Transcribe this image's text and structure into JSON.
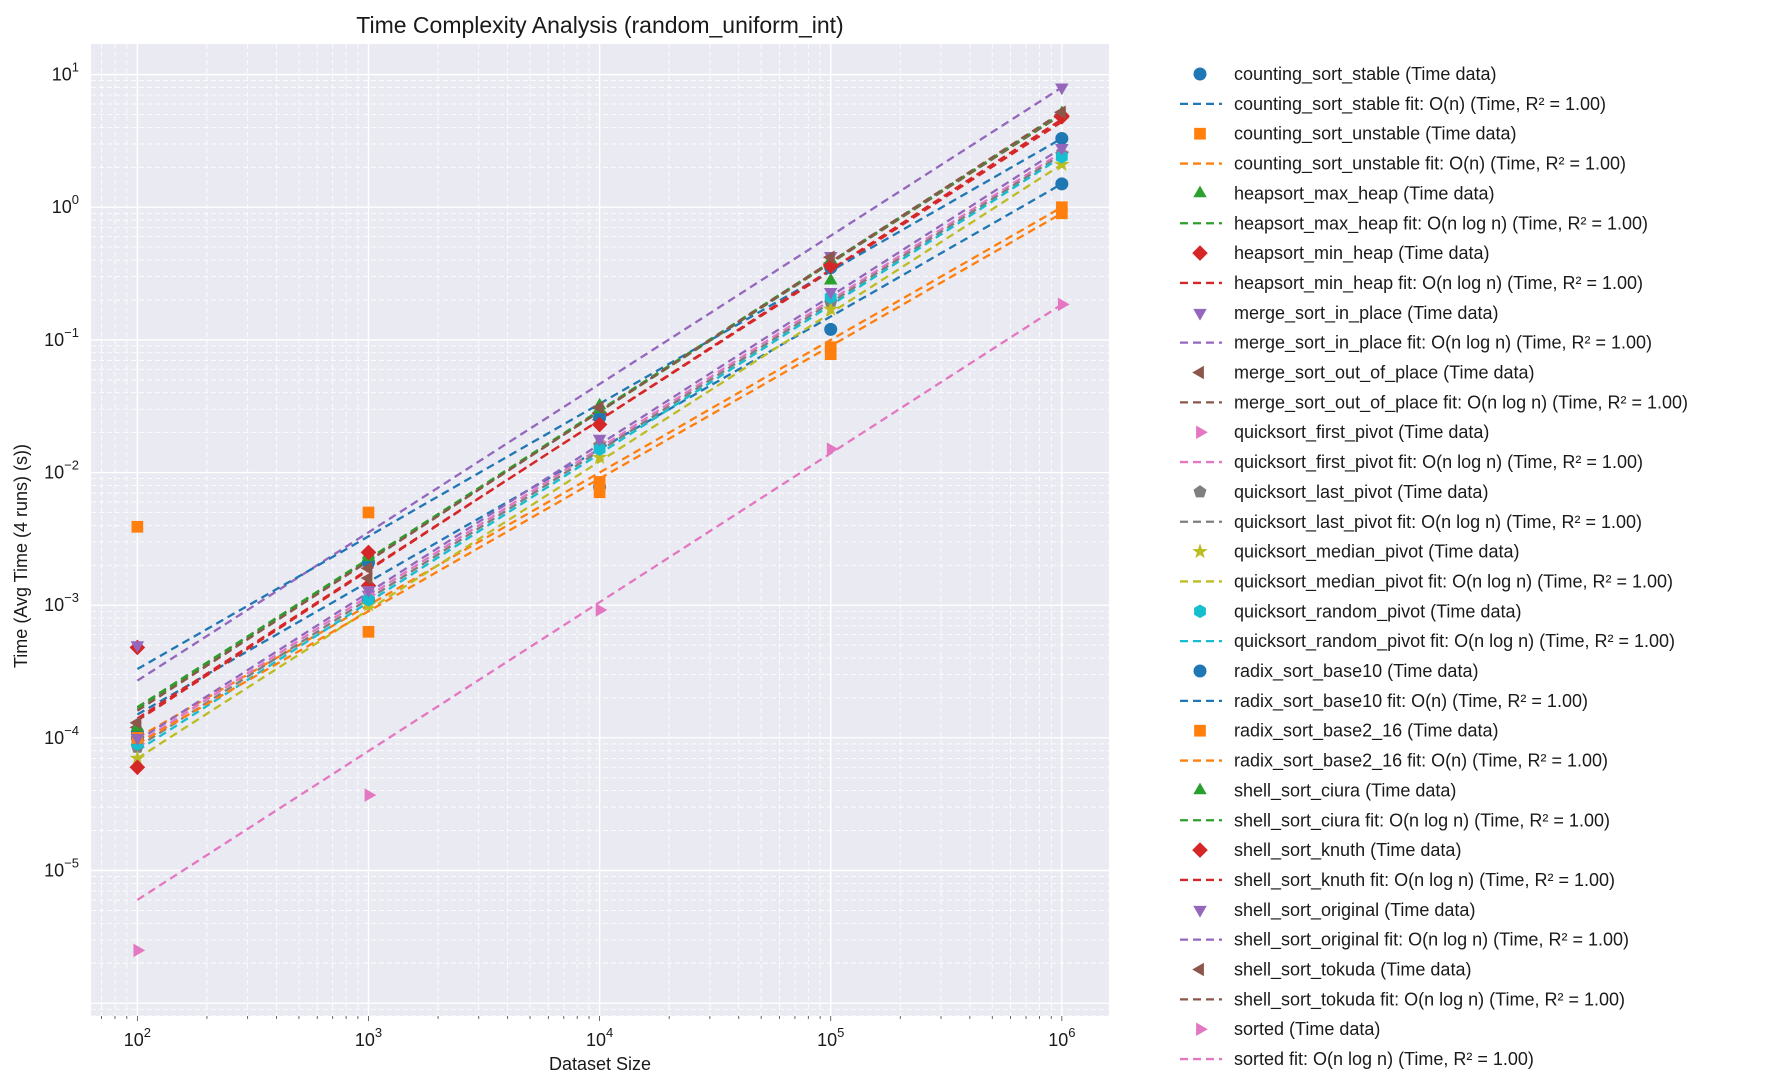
{
  "chart_data": {
    "type": "scatter",
    "title": "Time Complexity Analysis (random_uniform_int)",
    "xlabel": "Dataset Size",
    "ylabel": "Time (Avg Time (4 runs) (s))",
    "xscale": "log",
    "yscale": "log",
    "xlim": [
      63,
      1600000
    ],
    "ylim": [
      8e-07,
      17
    ],
    "x_ticks": [
      {
        "value": 100,
        "base": "10",
        "exp": "2"
      },
      {
        "value": 1000,
        "base": "10",
        "exp": "3"
      },
      {
        "value": 10000,
        "base": "10",
        "exp": "4"
      },
      {
        "value": 100000,
        "base": "10",
        "exp": "5"
      },
      {
        "value": 1000000,
        "base": "10",
        "exp": "6"
      }
    ],
    "y_ticks": [
      {
        "value": 1e-05,
        "base": "10",
        "exp": "−5"
      },
      {
        "value": 0.0001,
        "base": "10",
        "exp": "−4"
      },
      {
        "value": 0.001,
        "base": "10",
        "exp": "−3"
      },
      {
        "value": 0.01,
        "base": "10",
        "exp": "−2"
      },
      {
        "value": 0.1,
        "base": "10",
        "exp": "−1"
      },
      {
        "value": 1,
        "base": "10",
        "exp": "0"
      },
      {
        "value": 10,
        "base": "10",
        "exp": "1"
      }
    ],
    "grid": true,
    "legend_position": "outside-right",
    "x": [
      100,
      1000,
      10000,
      100000,
      1000000
    ],
    "series": [
      {
        "name": "counting_sort_stable",
        "color": "#1f77b4",
        "marker": "circle",
        "complexity": "O(n)",
        "data_label": "counting_sort_stable (Time data)",
        "fit_label": "counting_sort_stable fit: O(n) (Time, R² = 1.00)",
        "values": [
          0.00011,
          0.0011,
          0.0078,
          0.12,
          1.5
        ],
        "fit": [
          0.00015,
          1.5
        ]
      },
      {
        "name": "counting_sort_unstable",
        "color": "#ff7f0e",
        "marker": "square",
        "complexity": "O(n)",
        "data_label": "counting_sort_unstable (Time data)",
        "fit_label": "counting_sort_unstable fit: O(n) (Time, R² = 1.00)",
        "values": [
          0.0039,
          0.005,
          0.0071,
          0.088,
          1.0
        ],
        "fit": [
          0.0001,
          1.0
        ]
      },
      {
        "name": "heapsort_max_heap",
        "color": "#2ca02c",
        "marker": "triangle-up",
        "complexity": "O(n log n)",
        "data_label": "heapsort_max_heap (Time data)",
        "fit_label": "heapsort_max_heap fit: O(n log n) (Time, R² = 1.00)",
        "values": [
          9.5e-05,
          0.0024,
          0.032,
          0.28,
          5.0
        ],
        "fit": [
          0.000165,
          5.0
        ]
      },
      {
        "name": "heapsort_min_heap",
        "color": "#d62728",
        "marker": "diamond",
        "complexity": "O(n log n)",
        "data_label": "heapsort_min_heap (Time data)",
        "fit_label": "heapsort_min_heap fit: O(n log n) (Time, R² = 1.00)",
        "values": [
          0.00048,
          0.0014,
          0.028,
          0.37,
          4.9
        ],
        "fit": [
          0.00014,
          4.4
        ]
      },
      {
        "name": "merge_sort_in_place",
        "color": "#9467bd",
        "marker": "triangle-down",
        "complexity": "O(n log n)",
        "data_label": "merge_sort_in_place (Time data)",
        "fit_label": "merge_sort_in_place fit: O(n log n) (Time, R² = 1.00)",
        "values": [
          0.0005,
          0.0012,
          0.027,
          0.43,
          8.0
        ],
        "fit": [
          0.00027,
          8.0
        ]
      },
      {
        "name": "merge_sort_out_of_place",
        "color": "#8c564b",
        "marker": "triangle-left",
        "complexity": "O(n log n)",
        "data_label": "merge_sort_out_of_place (Time data)",
        "fit_label": "merge_sort_out_of_place fit: O(n log n) (Time, R² = 1.00)",
        "values": [
          0.00012,
          0.0016,
          0.025,
          0.38,
          5.0
        ],
        "fit": [
          0.00017,
          5.0
        ]
      },
      {
        "name": "quicksort_first_pivot",
        "color": "#e377c2",
        "marker": "triangle-right",
        "complexity": "O(n log n)",
        "data_label": "quicksort_first_pivot (Time data)",
        "fit_label": "quicksort_first_pivot fit: O(n log n) (Time, R² = 1.00)",
        "values": [
          9e-05,
          0.0012,
          0.017,
          0.2,
          2.6
        ],
        "fit": [
          9e-05,
          2.6
        ]
      },
      {
        "name": "quicksort_last_pivot",
        "color": "#7f7f7f",
        "marker": "pentagon",
        "complexity": "O(n log n)",
        "data_label": "quicksort_last_pivot (Time data)",
        "fit_label": "quicksort_last_pivot fit: O(n log n) (Time, R² = 1.00)",
        "values": [
          8.5e-05,
          0.0011,
          0.016,
          0.19,
          2.5
        ],
        "fit": [
          8.5e-05,
          2.5
        ]
      },
      {
        "name": "quicksort_median_pivot",
        "color": "#bcbd22",
        "marker": "star",
        "complexity": "O(n log n)",
        "data_label": "quicksort_median_pivot (Time data)",
        "fit_label": "quicksort_median_pivot fit: O(n log n) (Time, R² = 1.00)",
        "values": [
          7e-05,
          0.001,
          0.013,
          0.17,
          2.1
        ],
        "fit": [
          7e-05,
          2.1
        ]
      },
      {
        "name": "quicksort_random_pivot",
        "color": "#17becf",
        "marker": "hexagon",
        "complexity": "O(n log n)",
        "data_label": "quicksort_random_pivot (Time data)",
        "fit_label": "quicksort_random_pivot fit: O(n log n) (Time, R² = 1.00)",
        "values": [
          9e-05,
          0.0011,
          0.015,
          0.21,
          2.4
        ],
        "fit": [
          8e-05,
          2.4
        ]
      },
      {
        "name": "radix_sort_base10",
        "color": "#1f77b4",
        "marker": "circle",
        "complexity": "O(n)",
        "data_label": "radix_sort_base10 (Time data)",
        "fit_label": "radix_sort_base10 fit: O(n) (Time, R² = 1.00)",
        "values": [
          0.0001,
          0.0021,
          0.026,
          0.35,
          3.3
        ],
        "fit": [
          0.00033,
          3.3
        ]
      },
      {
        "name": "radix_sort_base2_16",
        "color": "#ff7f0e",
        "marker": "square",
        "complexity": "O(n)",
        "data_label": "radix_sort_base2_16 (Time data)",
        "fit_label": "radix_sort_base2_16 fit: O(n) (Time, R² = 1.00)",
        "values": [
          0.0001,
          0.00063,
          0.0085,
          0.078,
          0.9
        ],
        "fit": [
          9e-05,
          0.9
        ]
      },
      {
        "name": "shell_sort_ciura",
        "color": "#2ca02c",
        "marker": "triangle-up",
        "complexity": "O(n log n)",
        "data_label": "shell_sort_ciura (Time data)",
        "fit_label": "shell_sort_ciura fit: O(n log n) (Time, R² = 1.00)",
        "values": [
          0.00012,
          0.0023,
          0.03,
          0.4,
          5.1
        ],
        "fit": [
          0.00017,
          5.1
        ]
      },
      {
        "name": "shell_sort_knuth",
        "color": "#d62728",
        "marker": "diamond",
        "complexity": "O(n log n)",
        "data_label": "shell_sort_knuth (Time data)",
        "fit_label": "shell_sort_knuth fit: O(n log n) (Time, R² = 1.00)",
        "values": [
          6e-05,
          0.0025,
          0.023,
          0.36,
          4.8
        ],
        "fit": [
          0.000135,
          4.6
        ]
      },
      {
        "name": "shell_sort_original",
        "color": "#9467bd",
        "marker": "triangle-down",
        "complexity": "O(n log n)",
        "data_label": "shell_sort_original (Time data)",
        "fit_label": "shell_sort_original fit: O(n log n) (Time, R² = 1.00)",
        "values": [
          0.0001,
          0.0013,
          0.018,
          0.23,
          2.8
        ],
        "fit": [
          9.5e-05,
          2.8
        ]
      },
      {
        "name": "shell_sort_tokuda",
        "color": "#8c564b",
        "marker": "triangle-left",
        "complexity": "O(n log n)",
        "data_label": "shell_sort_tokuda (Time data)",
        "fit_label": "shell_sort_tokuda fit: O(n log n) (Time, R² = 1.00)",
        "values": [
          0.00013,
          0.0019,
          0.031,
          0.42,
          5.2
        ],
        "fit": [
          0.00016,
          5.2
        ]
      },
      {
        "name": "sorted",
        "color": "#e377c2",
        "marker": "triangle-right",
        "complexity": "O(n log n)",
        "data_label": "sorted (Time data)",
        "fit_label": "sorted fit: O(n log n) (Time, R² = 1.00)",
        "values": [
          2.5e-06,
          3.7e-05,
          0.00092,
          0.015,
          0.185
        ],
        "fit": [
          6e-06,
          0.185
        ]
      }
    ]
  }
}
